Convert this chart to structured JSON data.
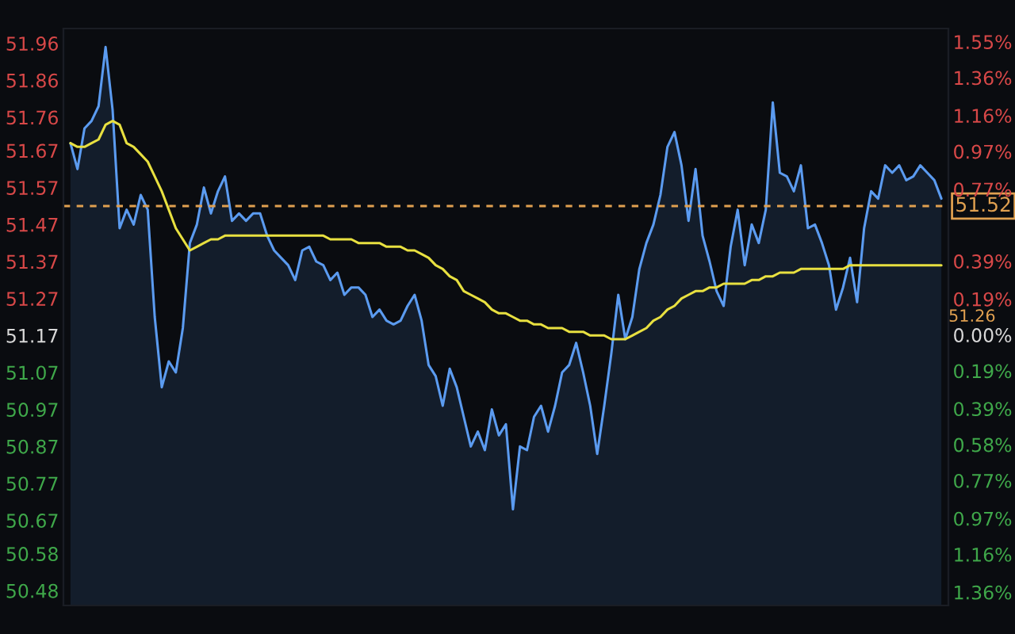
{
  "chart_data": {
    "type": "area",
    "categories": [
      null,
      null,
      null,
      null,
      null,
      null,
      null,
      null,
      null,
      null,
      null,
      null,
      null,
      null,
      null,
      null,
      null,
      null,
      null,
      null,
      null,
      null,
      null,
      null,
      null,
      null,
      null,
      null,
      null,
      null,
      null,
      null,
      null,
      null,
      null,
      null,
      null,
      null,
      null,
      null,
      null,
      null,
      null,
      null,
      null,
      null,
      null,
      null,
      null,
      null,
      null,
      null,
      null,
      null,
      null,
      null,
      null,
      null,
      null,
      null,
      null,
      null,
      null,
      null,
      null,
      null,
      null,
      null,
      null,
      null,
      null,
      null,
      null,
      null,
      null,
      null,
      null,
      null,
      null,
      null,
      null,
      null,
      null,
      null,
      null,
      null,
      null,
      null,
      null,
      null,
      null,
      null,
      null,
      null,
      null,
      null,
      null,
      null,
      null,
      null,
      null,
      null,
      null,
      null,
      null,
      null,
      null,
      null,
      null,
      null,
      null,
      null,
      null,
      null,
      null,
      null,
      null,
      null,
      null,
      null,
      null,
      null,
      null,
      null,
      null
    ],
    "ylim": [
      50.44,
      52.0
    ],
    "yticks": [
      51.96,
      51.86,
      51.76,
      51.67,
      51.57,
      51.47,
      51.37,
      51.27,
      51.17,
      51.07,
      50.97,
      50.87,
      50.77,
      50.67,
      50.58,
      50.48
    ],
    "y2lim": [
      -1.43,
      1.62
    ],
    "y2ticks": [
      {
        "value": 1.55,
        "label": "1.55%"
      },
      {
        "value": 1.36,
        "label": "1.36%"
      },
      {
        "value": 1.16,
        "label": "1.16%"
      },
      {
        "value": 0.97,
        "label": "0.97%"
      },
      {
        "value": 0.77,
        "label": "0.77%"
      },
      {
        "value": 0.39,
        "label": "0.39%"
      },
      {
        "value": 0.19,
        "label": "0.19%"
      },
      {
        "value": 0,
        "label": "0.00%"
      },
      {
        "value": -0.19,
        "label": "0.19%"
      },
      {
        "value": -0.39,
        "label": "0.39%"
      },
      {
        "value": -0.58,
        "label": "0.58%"
      },
      {
        "value": -0.77,
        "label": "0.77%"
      },
      {
        "value": -0.97,
        "label": "0.97%"
      },
      {
        "value": -1.16,
        "label": "1.16%"
      },
      {
        "value": -1.36,
        "label": "1.36%"
      }
    ],
    "ref_lines": [
      {
        "axis": "y",
        "value": 51.52,
        "label": "51.52",
        "color": "#e0a050",
        "line_style": "dashed"
      }
    ],
    "annotations": [
      "51.26"
    ],
    "series": [
      {
        "color": "#5b9bf0",
        "values": [
          51.69,
          51.62,
          51.73,
          51.75,
          51.79,
          51.95,
          51.78,
          51.46,
          51.51,
          51.47,
          51.55,
          51.51,
          51.22,
          51.03,
          51.1,
          51.07,
          51.19,
          51.42,
          51.47,
          51.57,
          51.5,
          51.56,
          51.6,
          51.48,
          51.5,
          51.48,
          51.5,
          51.5,
          51.44,
          51.4,
          51.38,
          51.36,
          51.32,
          51.4,
          51.41,
          51.37,
          51.36,
          51.32,
          51.34,
          51.28,
          51.3,
          51.3,
          51.28,
          51.22,
          51.24,
          51.21,
          51.2,
          51.21,
          51.25,
          51.28,
          51.21,
          51.09,
          51.06,
          50.98,
          51.08,
          51.03,
          50.95,
          50.87,
          50.91,
          50.86,
          50.97,
          50.9,
          50.93,
          50.7,
          50.87,
          50.86,
          50.95,
          50.98,
          50.91,
          50.98,
          51.07,
          51.09,
          51.15,
          51.07,
          50.98,
          50.85,
          50.98,
          51.12,
          51.28,
          51.16,
          51.22,
          51.35,
          51.42,
          51.47,
          51.55,
          51.68,
          51.72,
          51.63,
          51.48,
          51.62,
          51.44,
          51.37,
          51.29,
          51.25,
          51.41,
          51.51,
          51.36,
          51.47,
          51.42,
          51.51,
          51.8,
          51.61,
          51.6,
          51.56,
          51.63,
          51.46,
          51.47,
          51.42,
          51.36,
          51.24,
          51.3,
          51.38,
          51.26,
          51.46,
          51.56,
          51.54,
          51.63,
          51.61,
          51.63,
          51.59,
          51.6,
          51.63,
          51.61,
          51.59,
          51.54
        ]
      },
      {
        "type": "line",
        "color": "#e8e040",
        "values": [
          51.69,
          51.68,
          51.68,
          51.69,
          51.7,
          51.74,
          51.75,
          51.74,
          51.69,
          51.68,
          51.66,
          51.64,
          51.6,
          51.56,
          51.51,
          51.46,
          51.43,
          51.4,
          51.41,
          51.42,
          51.43,
          51.43,
          51.44,
          51.44,
          51.44,
          51.44,
          51.44,
          51.44,
          51.44,
          51.44,
          51.44,
          51.44,
          51.44,
          51.44,
          51.44,
          51.44,
          51.44,
          51.43,
          51.43,
          51.43,
          51.43,
          51.42,
          51.42,
          51.42,
          51.42,
          51.41,
          51.41,
          51.41,
          51.4,
          51.4,
          51.39,
          51.38,
          51.36,
          51.35,
          51.33,
          51.32,
          51.29,
          51.28,
          51.27,
          51.26,
          51.24,
          51.23,
          51.23,
          51.22,
          51.21,
          51.21,
          51.2,
          51.2,
          51.19,
          51.19,
          51.19,
          51.18,
          51.18,
          51.18,
          51.17,
          51.17,
          51.17,
          51.16,
          51.16,
          51.16,
          51.17,
          51.18,
          51.19,
          51.21,
          51.22,
          51.24,
          51.25,
          51.27,
          51.28,
          51.29,
          51.29,
          51.3,
          51.3,
          51.31,
          51.31,
          51.31,
          51.31,
          51.32,
          51.32,
          51.33,
          51.33,
          51.34,
          51.34,
          51.34,
          51.35,
          51.35,
          51.35,
          51.35,
          51.35,
          51.35,
          51.35,
          51.36,
          51.36,
          51.36,
          51.36,
          51.36,
          51.36,
          51.36,
          51.36,
          51.36,
          51.36,
          51.36,
          51.36,
          51.36,
          51.36
        ]
      }
    ]
  }
}
